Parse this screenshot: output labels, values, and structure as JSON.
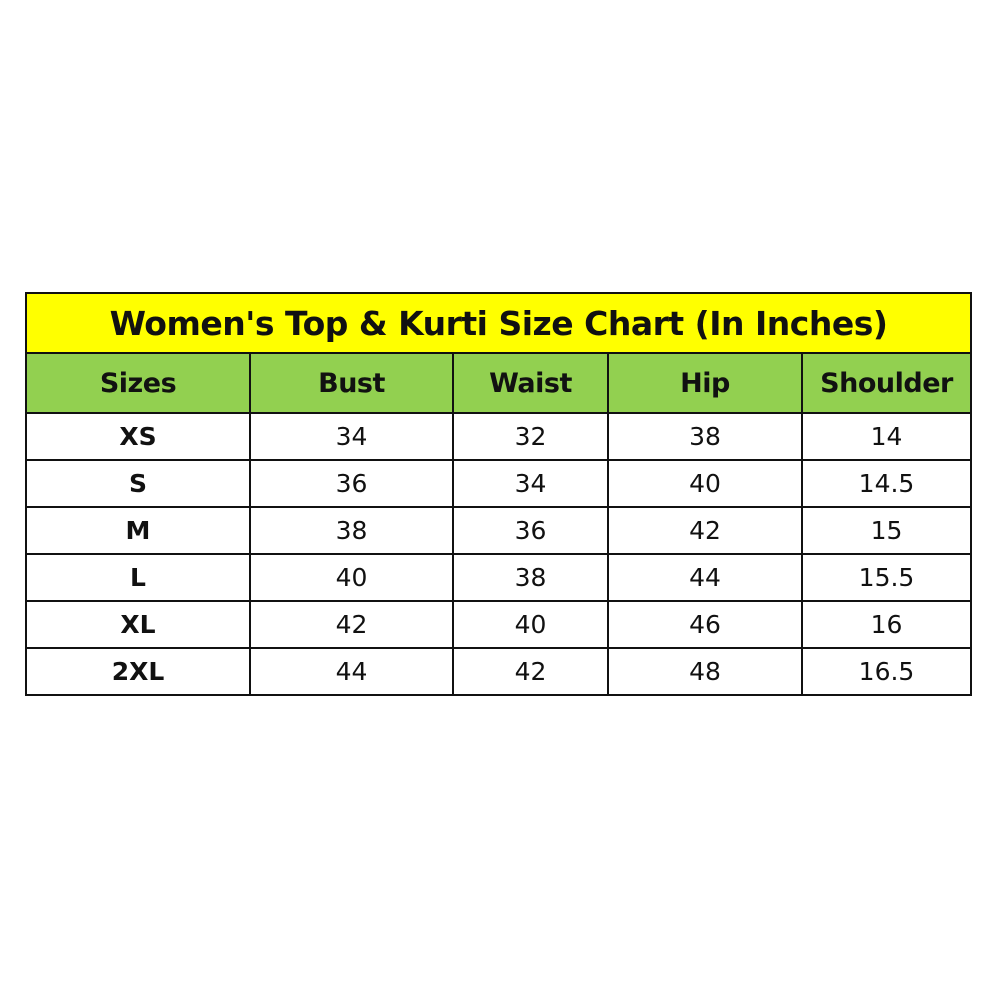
{
  "title": "Women's Top & Kurti Size Chart (In Inches)",
  "colors": {
    "title_bg": "#FFFF00",
    "header_bg": "#92D050"
  },
  "columns": [
    "Sizes",
    "Bust",
    "Waist",
    "Hip",
    "Shoulder"
  ],
  "rows": [
    [
      "XS",
      "34",
      "32",
      "38",
      "14"
    ],
    [
      "S",
      "36",
      "34",
      "40",
      "14.5"
    ],
    [
      "M",
      "38",
      "36",
      "42",
      "15"
    ],
    [
      "L",
      "40",
      "38",
      "44",
      "15.5"
    ],
    [
      "XL",
      "42",
      "40",
      "46",
      "16"
    ],
    [
      "2XL",
      "44",
      "42",
      "48",
      "16.5"
    ]
  ]
}
